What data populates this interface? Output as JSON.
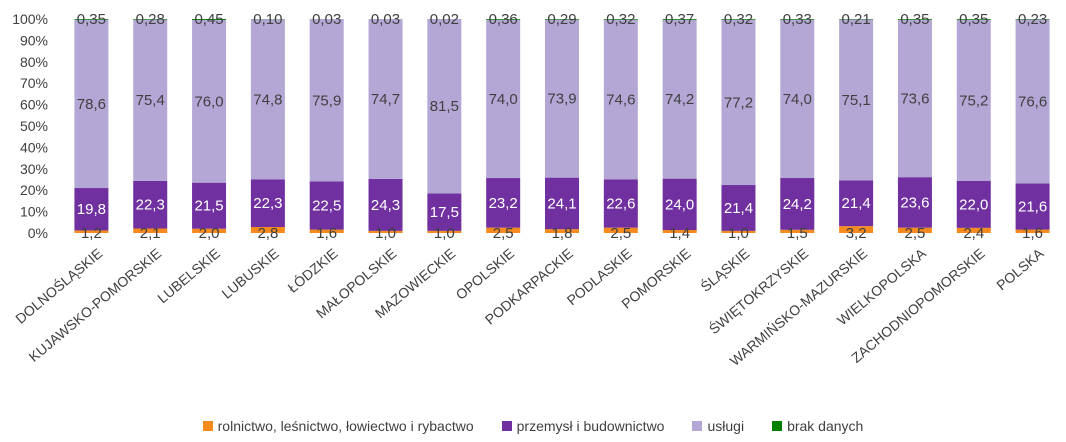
{
  "chart_data": {
    "type": "bar",
    "stacked": true,
    "percent": true,
    "categories": [
      "DOLNOŚLĄSKIE",
      "KUJAWSKO-POMORSKIE",
      "LUBELSKIE",
      "LUBUSKIE",
      "ŁÓDZKIE",
      "MAŁOPOLSKIE",
      "MAZOWIECKIE",
      "OPOLSKIE",
      "PODKARPACKIE",
      "PODLASKIE",
      "POMORSKIE",
      "ŚLĄSKIE",
      "ŚWIĘTOKRZYSKIE",
      "WARMIŃSKO-MAZURSKIE",
      "WIELKOPOLSKA",
      "ZACHODNIOPOMORSKIE",
      "POLSKA"
    ],
    "series": [
      {
        "name": "rolnictwo, leśnictwo, łowiectwo i rybactwo",
        "color": "#f58a1f",
        "values": [
          1.2,
          2.1,
          2.0,
          2.8,
          1.6,
          1.0,
          1.0,
          2.5,
          1.8,
          2.5,
          1.4,
          1.0,
          1.5,
          3.2,
          2.5,
          2.4,
          1.6
        ],
        "labels": [
          "1,2",
          "2,1",
          "2,0",
          "2,8",
          "1,6",
          "1,0",
          "1,0",
          "2,5",
          "1,8",
          "2,5",
          "1,4",
          "1,0",
          "1,5",
          "3,2",
          "2,5",
          "2,4",
          "1,6"
        ]
      },
      {
        "name": "przemysł i budownictwo",
        "color": "#7030a0",
        "values": [
          19.8,
          22.3,
          21.5,
          22.3,
          22.5,
          24.3,
          17.5,
          23.2,
          24.1,
          22.6,
          24.0,
          21.4,
          24.2,
          21.4,
          23.6,
          22.0,
          21.6
        ],
        "labels": [
          "19,8",
          "22,3",
          "21,5",
          "22,3",
          "22,5",
          "24,3",
          "17,5",
          "23,2",
          "24,1",
          "22,6",
          "24,0",
          "21,4",
          "24,2",
          "21,4",
          "23,6",
          "22,0",
          "21,6"
        ]
      },
      {
        "name": "usługi",
        "color": "#b4a7d6",
        "values": [
          78.6,
          75.4,
          76.0,
          74.8,
          75.9,
          74.7,
          81.5,
          74.0,
          73.9,
          74.6,
          74.2,
          77.2,
          74.0,
          75.1,
          73.6,
          75.2,
          76.6
        ],
        "labels": [
          "78,6",
          "75,4",
          "76,0",
          "74,8",
          "75,9",
          "74,7",
          "81,5",
          "74,0",
          "73,9",
          "74,6",
          "74,2",
          "77,2",
          "74,0",
          "75,1",
          "73,6",
          "75,2",
          "76,6"
        ]
      },
      {
        "name": "brak danych",
        "color": "#008000",
        "values": [
          0.35,
          0.28,
          0.45,
          0.1,
          0.03,
          0.03,
          0.02,
          0.36,
          0.29,
          0.32,
          0.37,
          0.32,
          0.33,
          0.21,
          0.35,
          0.35,
          0.23
        ],
        "labels": [
          "0,35",
          "0,28",
          "0,45",
          "0,10",
          "0,03",
          "0,03",
          "0,02",
          "0,36",
          "0,29",
          "0,32",
          "0,37",
          "0,32",
          "0,33",
          "0,21",
          "0,35",
          "0,35",
          "0,23"
        ]
      }
    ],
    "yticks": [
      "0%",
      "10%",
      "20%",
      "30%",
      "40%",
      "50%",
      "60%",
      "70%",
      "80%",
      "90%",
      "100%"
    ],
    "ylim": [
      0,
      100
    ],
    "grid": false,
    "legend_position": "bottom"
  }
}
